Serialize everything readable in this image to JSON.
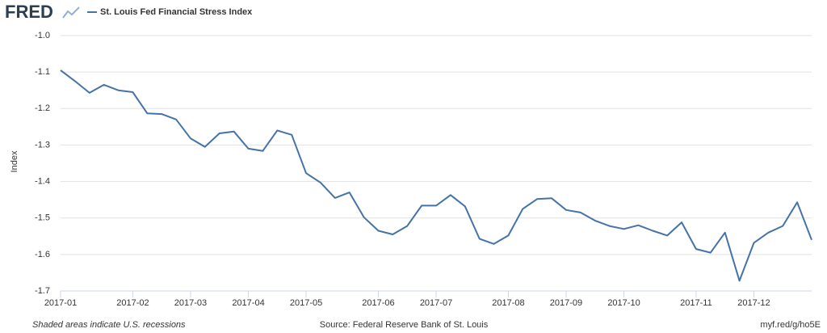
{
  "chart_data": {
    "type": "line",
    "logo": "FRED",
    "title": "St. Louis Fed Financial Stress Index",
    "y_label": "Index",
    "note": "Shaded areas indicate U.S. recessions",
    "source": "Source: Federal Reserve Bank of St. Louis",
    "link": "myf.red/g/ho5E",
    "categories": [
      "2017-01",
      null,
      null,
      null,
      null,
      "2017-02",
      null,
      null,
      null,
      "2017-03",
      null,
      null,
      null,
      "2017-04",
      null,
      null,
      null,
      "2017-05",
      null,
      null,
      null,
      null,
      "2017-06",
      null,
      null,
      null,
      "2017-07",
      null,
      null,
      null,
      null,
      "2017-08",
      null,
      null,
      null,
      "2017-09",
      null,
      null,
      null,
      "2017-10",
      null,
      null,
      null,
      null,
      "2017-11",
      null,
      null,
      null,
      "2017-12",
      null,
      null,
      null,
      null
    ],
    "series": [
      {
        "name": "St. Louis Fed Financial Stress Index",
        "color": "#4572a7",
        "values": [
          -1.095,
          -1.125,
          -1.157,
          -1.135,
          -1.15,
          -1.155,
          -1.213,
          -1.215,
          -1.23,
          -1.282,
          -1.305,
          -1.268,
          -1.263,
          -1.31,
          -1.316,
          -1.26,
          -1.272,
          -1.377,
          -1.403,
          -1.445,
          -1.43,
          -1.498,
          -1.535,
          -1.545,
          -1.522,
          -1.466,
          -1.466,
          -1.437,
          -1.468,
          -1.557,
          -1.571,
          -1.548,
          -1.475,
          -1.448,
          -1.446,
          -1.478,
          -1.485,
          -1.507,
          -1.522,
          -1.53,
          -1.52,
          -1.535,
          -1.548,
          -1.512,
          -1.585,
          -1.595,
          -1.54,
          -1.672,
          -1.568,
          -1.54,
          -1.522,
          -1.457,
          -1.56
        ]
      }
    ],
    "ylim": [
      -1.7,
      -1.0
    ],
    "yticks": [
      -1.7,
      -1.6,
      -1.5,
      -1.4,
      -1.3,
      -1.2,
      -1.1,
      {
        "value": -1.0,
        "label": "-1.0"
      }
    ],
    "grid": true
  }
}
